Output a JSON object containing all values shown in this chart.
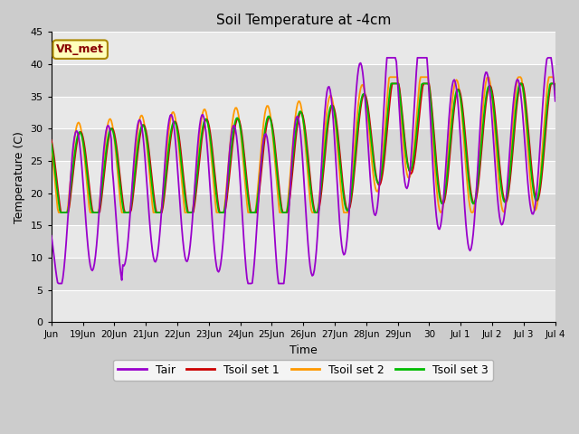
{
  "title": "Soil Temperature at -4cm",
  "xlabel": "Time",
  "ylabel": "Temperature (C)",
  "ylim": [
    0,
    45
  ],
  "yticks": [
    0,
    5,
    10,
    15,
    20,
    25,
    30,
    35,
    40,
    45
  ],
  "colors": {
    "Tair": "#9900cc",
    "Tsoil1": "#cc0000",
    "Tsoil2": "#ff9900",
    "Tsoil3": "#00bb00"
  },
  "annotation_text": "VR_met",
  "annotation_color": "#880000",
  "annotation_bg": "#ffffbb",
  "annotation_edge": "#aa8800",
  "legend_labels": [
    "Tair",
    "Tsoil set 1",
    "Tsoil set 2",
    "Tsoil set 3"
  ],
  "tick_labels": [
    "Jun",
    "19Jun",
    "20Jun",
    "21Jun",
    "22Jun",
    "23Jun",
    "24Jun",
    "25Jun",
    "26Jun",
    "27Jun",
    "28Jun",
    "29Jun",
    "30",
    "Jul 1",
    "Jul 2",
    "Jul 3",
    "Jul 4"
  ],
  "band_colors": [
    "#e8e8e8",
    "#d8d8d8"
  ],
  "fig_bg": "#cccccc",
  "plot_bg": "#e8e8e8"
}
